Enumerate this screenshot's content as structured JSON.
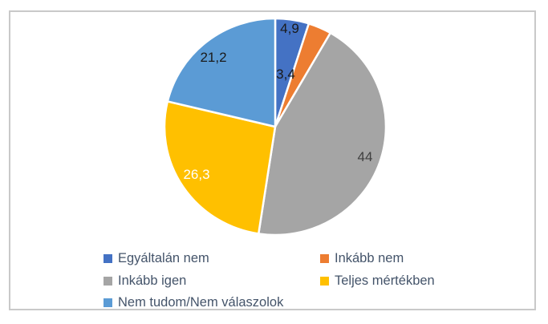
{
  "chart_data": {
    "type": "pie",
    "title": "",
    "categories": [
      "Egyáltalán nem",
      "Inkább nem",
      "Inkább igen",
      "Teljes mértékben",
      "Nem tudom/Nem válaszolok"
    ],
    "values": [
      4.9,
      3.4,
      44,
      26.3,
      21.2
    ],
    "value_labels": [
      "4,9",
      "3,4",
      "44",
      "26,3",
      "21,2"
    ],
    "colors": [
      "#4472C4",
      "#ED7D31",
      "#A5A5A5",
      "#FFC000",
      "#5B9BD5"
    ],
    "label_colors": [
      "#1a1a1a",
      "#1a1a1a",
      "#404040",
      "#ffffff",
      "#1a1a1a"
    ],
    "start_angle_deg": 0,
    "direction": "clockwise",
    "legend_position": "bottom",
    "background_color": "#ffffff",
    "border_color": "#c9c9c9"
  }
}
